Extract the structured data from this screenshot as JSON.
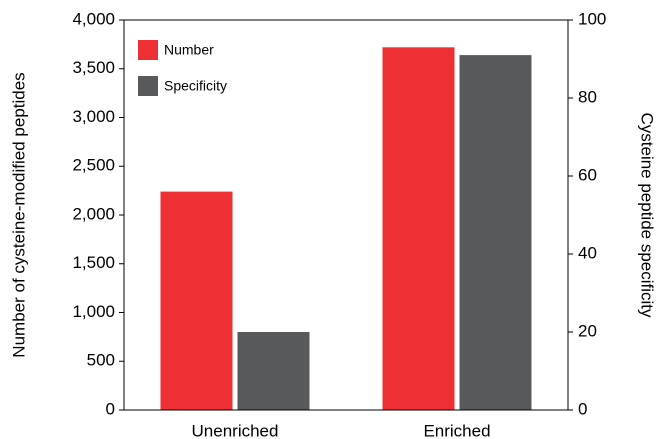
{
  "chart_data": {
    "type": "bar",
    "categories": [
      "Unenriched",
      "Enriched"
    ],
    "y_label": "Number of cysteine-modified peptides",
    "y2_label": "Cysteine peptide specificity",
    "series": [
      {
        "name": "Number",
        "color": "#ee3035",
        "values": [
          2240,
          3720
        ]
      },
      {
        "name": "Specificity",
        "color": "#58595b",
        "values": [
          20,
          91
        ],
        "axis": "y2"
      }
    ],
    "ylim": [
      0,
      4000
    ],
    "yticks": [
      0,
      500,
      {
        "value": 1000,
        "label": "1,000"
      },
      {
        "value": 1500,
        "label": "1,500"
      },
      {
        "value": 2000,
        "label": "2,000"
      },
      {
        "value": 2500,
        "label": "2,500"
      },
      {
        "value": 3000,
        "label": "3,000"
      },
      {
        "value": 3500,
        "label": "3,500"
      },
      {
        "value": 4000,
        "label": "4,000"
      }
    ],
    "y2lim": [
      0,
      100
    ],
    "y2ticks": [
      0,
      20,
      40,
      60,
      80,
      100
    ],
    "legend": "upper-left"
  }
}
